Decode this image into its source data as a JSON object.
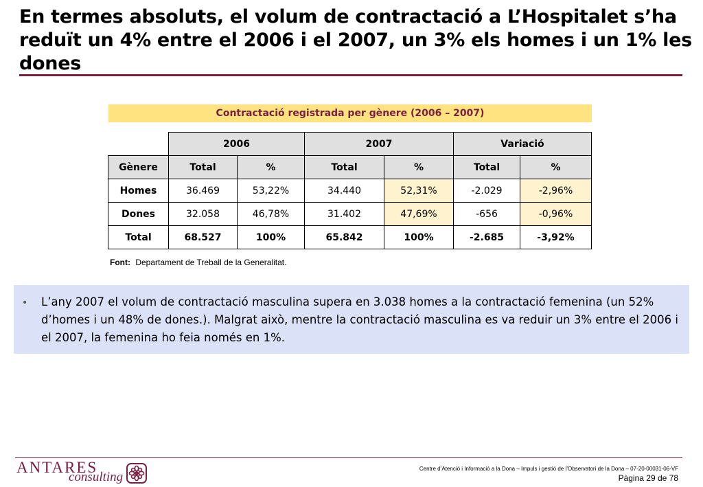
{
  "title": "En termes absoluts, el volum de contractació a L’Hospitalet s’ha reduït un 4% entre el 2006 i el 2007, un 3% els homes i un 1% les dones",
  "table": {
    "caption": "Contractació registrada per gènere (2006 – 2007)",
    "year_headers": [
      "2006",
      "2007",
      "Variació"
    ],
    "column_headers": [
      "Gènere",
      "Total",
      "%",
      "Total",
      "%",
      "Total",
      "%"
    ],
    "rows": [
      {
        "label": "Homes",
        "values": [
          "36.469",
          "53,22%",
          "34.440",
          "52,31%",
          "-2.029",
          "-2,96%"
        ]
      },
      {
        "label": "Dones",
        "values": [
          "32.058",
          "46,78%",
          "31.402",
          "47,69%",
          "-656",
          "-0,96%"
        ]
      },
      {
        "label": "Total",
        "values": [
          "68.527",
          "100%",
          "65.842",
          "100%",
          "-2.685",
          "-3,92%"
        ]
      }
    ],
    "highlight_color": "#fff3cf"
  },
  "source": {
    "label": "Font:",
    "text": "Departament de Treball de la Generalitat."
  },
  "note": {
    "bullet": "•",
    "text": "L’any 2007 el volum de contractació masculina supera en 3.038 homes a la contractació femenina (un 52% d’homes i un 48% de dones.). Malgrat això, mentre la contractació masculina es va reduir un 3% entre el 2006 i el 2007, la femenina ho feia només en 1%."
  },
  "footer": {
    "logo_word": "ANTARES",
    "logo_sub": "consulting",
    "doc_info": "Centre d’Atenció i Informació a la Dona – Impuls i gestió de l’Observatori de la Dona – 07-20-00031-06-VF",
    "page": "Pàgina 29 de 78"
  },
  "colors": {
    "brand": "#7a1f3d",
    "caption_bg": "#ffe380",
    "note_bg": "#dbe1f7",
    "header_bg": "#e0e0e0"
  }
}
